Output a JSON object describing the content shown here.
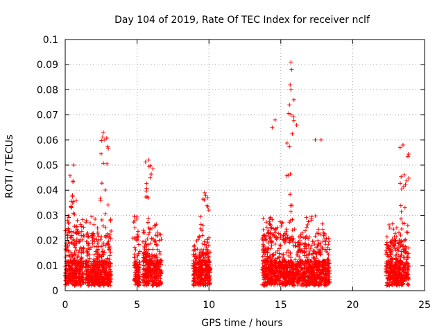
{
  "chart_data": {
    "type": "scatter",
    "title": "Day 104 of 2019, Rate Of TEC Index for receiver nclf",
    "xlabel": "GPS time / hours",
    "ylabel": "ROTI / TECUs",
    "xlim": [
      0,
      25
    ],
    "ylim": [
      0,
      0.1
    ],
    "x_ticks": [
      0,
      5,
      10,
      15,
      20,
      25
    ],
    "x_tick_labels": [
      "0",
      "5",
      "10",
      "15",
      "20",
      "25"
    ],
    "y_ticks": [
      0,
      0.01,
      0.02,
      0.03,
      0.04,
      0.05,
      0.06,
      0.07,
      0.08,
      0.09,
      0.1
    ],
    "y_tick_labels": [
      "0",
      "0.01",
      "0.02",
      "0.03",
      "0.04",
      "0.05",
      "0.06",
      "0.07",
      "0.08",
      "0.09",
      "0.1"
    ],
    "grid": true,
    "marker": "+",
    "marker_color": "#ff0000",
    "series": [
      {
        "name": "ROTI",
        "clusters": [
          {
            "x_start": 0.0,
            "x_end": 1.3,
            "typical_max": 0.03,
            "peak_x": 0.6,
            "peak_y": 0.05
          },
          {
            "x_start": 1.4,
            "x_end": 3.2,
            "typical_max": 0.028,
            "peak_x": 2.7,
            "peak_y": 0.063
          },
          {
            "x_start": 4.8,
            "x_end": 5.2,
            "typical_max": 0.02,
            "peak_x": 4.9,
            "peak_y": 0.03
          },
          {
            "x_start": 5.4,
            "x_end": 6.7,
            "typical_max": 0.025,
            "peak_x": 5.8,
            "peak_y": 0.052
          },
          {
            "x_start": 8.9,
            "x_end": 10.1,
            "typical_max": 0.02,
            "peak_x": 9.7,
            "peak_y": 0.039
          },
          {
            "x_start": 13.7,
            "x_end": 18.4,
            "typical_max": 0.028,
            "peak_x": 15.7,
            "peak_y": 0.091
          },
          {
            "x_start": 22.3,
            "x_end": 23.9,
            "typical_max": 0.025,
            "peak_x": 23.6,
            "peak_y": 0.058
          }
        ],
        "notable_points": [
          {
            "x": 15.7,
            "y": 0.091
          },
          {
            "x": 15.75,
            "y": 0.088
          },
          {
            "x": 15.65,
            "y": 0.082
          },
          {
            "x": 15.7,
            "y": 0.08
          },
          {
            "x": 15.6,
            "y": 0.074
          },
          {
            "x": 14.6,
            "y": 0.068
          },
          {
            "x": 14.4,
            "y": 0.065
          },
          {
            "x": 15.7,
            "y": 0.07
          },
          {
            "x": 16.1,
            "y": 0.066
          },
          {
            "x": 2.65,
            "y": 0.063
          },
          {
            "x": 2.75,
            "y": 0.06
          },
          {
            "x": 23.5,
            "y": 0.058
          },
          {
            "x": 23.3,
            "y": 0.057
          },
          {
            "x": 17.4,
            "y": 0.06
          },
          {
            "x": 17.8,
            "y": 0.06
          },
          {
            "x": 5.8,
            "y": 0.052
          },
          {
            "x": 0.6,
            "y": 0.05
          },
          {
            "x": 9.7,
            "y": 0.039
          },
          {
            "x": 9.9,
            "y": 0.037
          }
        ]
      }
    ]
  }
}
